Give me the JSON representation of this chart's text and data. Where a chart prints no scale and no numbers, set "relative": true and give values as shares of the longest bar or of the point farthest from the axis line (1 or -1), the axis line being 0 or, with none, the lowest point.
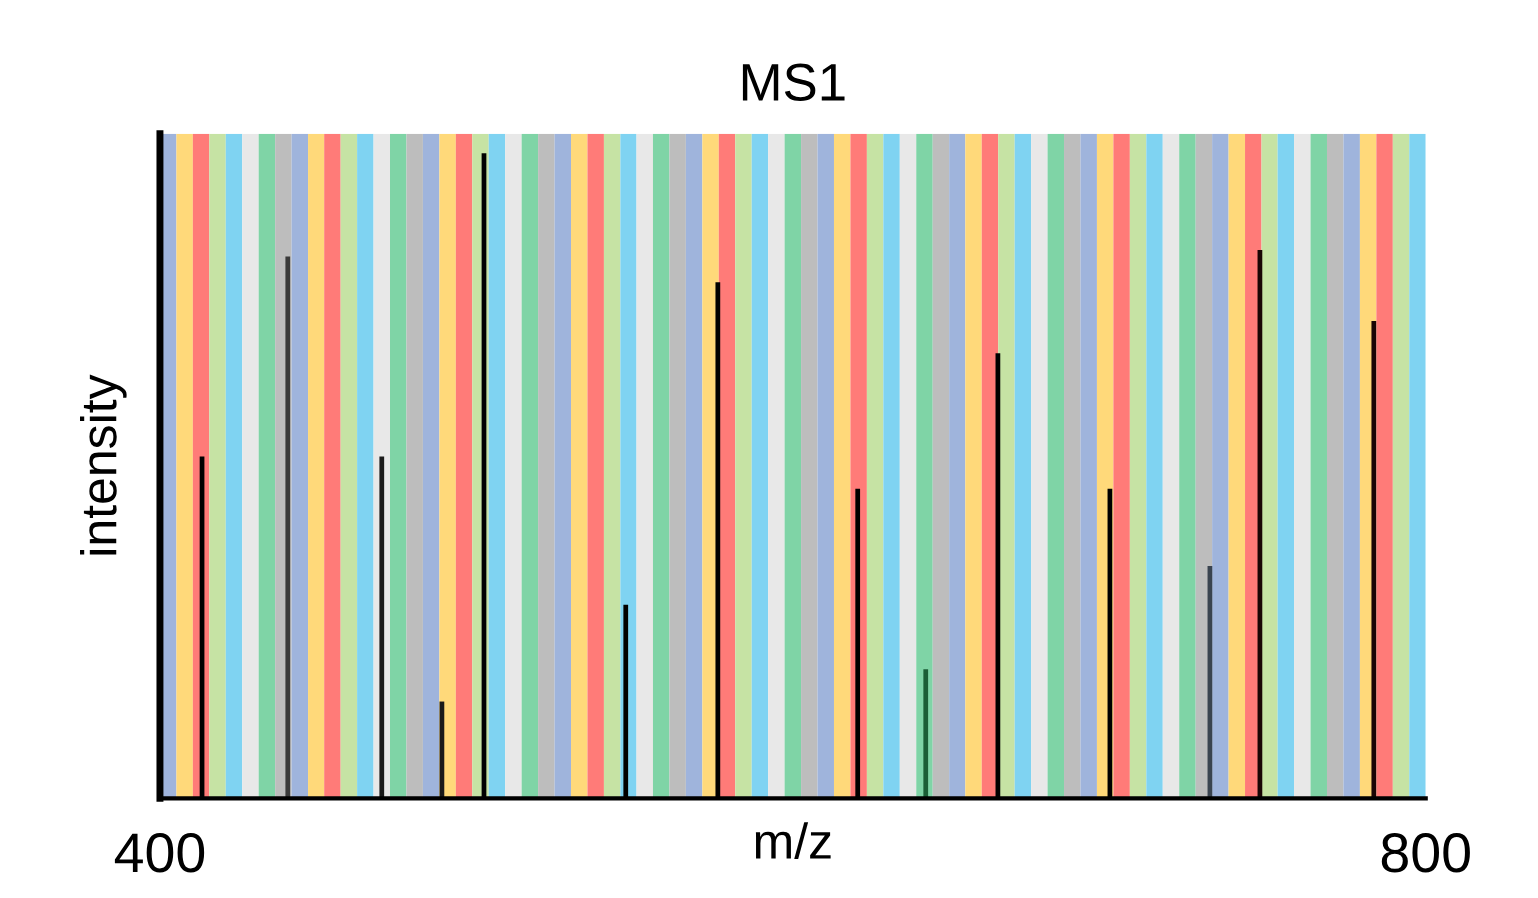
{
  "chart_data": {
    "type": "bar",
    "title": "MS1",
    "xlabel": "m/z",
    "ylabel": "intensity",
    "relative": true,
    "tick_labels": "x",
    "grid": false,
    "xlim": [
      400,
      800
    ],
    "xticks": [
      400,
      800
    ],
    "x": [
      413.3,
      440.4,
      470.1,
      489.1,
      502.4,
      547.2,
      576.3,
      620.5,
      642.0,
      664.8,
      700.2,
      731.8,
      747.6,
      783.6
    ],
    "values": [
      0.53,
      0.84,
      0.53,
      0.15,
      1,
      0.3,
      0.8,
      0.48,
      0.2,
      0.69,
      0.48,
      0.36,
      0.85,
      0.74
    ],
    "colors": [
      "#000000",
      "#3a3a3a",
      "#1a1a1a",
      "#1a1a1a",
      "#000000",
      "#000000",
      "#000000",
      "#000000",
      "#1b5e36",
      "#000000",
      "#000000",
      "#3a4450",
      "#1a0505",
      "#1a0505"
    ],
    "bands": [
      {
        "axis": "x",
        "from": 400,
        "to": 405.2,
        "color": "#9fb4dc"
      },
      {
        "axis": "x",
        "from": 405.2,
        "to": 410.4,
        "color": "#ffd97a"
      },
      {
        "axis": "x",
        "from": 410.4,
        "to": 415.6,
        "color": "#ff7b78"
      },
      {
        "axis": "x",
        "from": 415.6,
        "to": 420.8,
        "color": "#c6e3a4"
      },
      {
        "axis": "x",
        "from": 420.8,
        "to": 426.0,
        "color": "#7fd3f2"
      },
      {
        "axis": "x",
        "from": 426.0,
        "to": 431.2,
        "color": "#e8e8e8"
      },
      {
        "axis": "x",
        "from": 431.2,
        "to": 436.4,
        "color": "#7fd4a6"
      },
      {
        "axis": "x",
        "from": 436.4,
        "to": 441.6,
        "color": "#bdbdbd"
      },
      {
        "axis": "x",
        "from": 441.6,
        "to": 446.8,
        "color": "#9fb4dc"
      },
      {
        "axis": "x",
        "from": 446.8,
        "to": 451.9,
        "color": "#ffd97a"
      },
      {
        "axis": "x",
        "from": 451.9,
        "to": 457.1,
        "color": "#ff7b78"
      },
      {
        "axis": "x",
        "from": 457.1,
        "to": 462.3,
        "color": "#c6e3a4"
      },
      {
        "axis": "x",
        "from": 462.3,
        "to": 467.5,
        "color": "#7fd3f2"
      },
      {
        "axis": "x",
        "from": 467.5,
        "to": 472.7,
        "color": "#e8e8e8"
      },
      {
        "axis": "x",
        "from": 472.7,
        "to": 477.9,
        "color": "#7fd4a6"
      },
      {
        "axis": "x",
        "from": 477.9,
        "to": 483.1,
        "color": "#bdbdbd"
      },
      {
        "axis": "x",
        "from": 483.1,
        "to": 488.3,
        "color": "#9fb4dc"
      },
      {
        "axis": "x",
        "from": 488.3,
        "to": 493.5,
        "color": "#ffd97a"
      },
      {
        "axis": "x",
        "from": 493.5,
        "to": 498.7,
        "color": "#ff7b78"
      },
      {
        "axis": "x",
        "from": 498.7,
        "to": 503.9,
        "color": "#c6e3a4"
      },
      {
        "axis": "x",
        "from": 503.9,
        "to": 509.1,
        "color": "#7fd3f2"
      },
      {
        "axis": "x",
        "from": 509.1,
        "to": 514.3,
        "color": "#e8e8e8"
      },
      {
        "axis": "x",
        "from": 514.3,
        "to": 519.5,
        "color": "#7fd4a6"
      },
      {
        "axis": "x",
        "from": 519.5,
        "to": 524.7,
        "color": "#bdbdbd"
      },
      {
        "axis": "x",
        "from": 524.7,
        "to": 529.9,
        "color": "#9fb4dc"
      },
      {
        "axis": "x",
        "from": 529.9,
        "to": 535.1,
        "color": "#ffd97a"
      },
      {
        "axis": "x",
        "from": 535.1,
        "to": 540.3,
        "color": "#ff7b78"
      },
      {
        "axis": "x",
        "from": 540.3,
        "to": 545.5,
        "color": "#c6e3a4"
      },
      {
        "axis": "x",
        "from": 545.5,
        "to": 550.6,
        "color": "#7fd3f2"
      },
      {
        "axis": "x",
        "from": 550.6,
        "to": 555.8,
        "color": "#e8e8e8"
      },
      {
        "axis": "x",
        "from": 555.8,
        "to": 561.0,
        "color": "#7fd4a6"
      },
      {
        "axis": "x",
        "from": 561.0,
        "to": 566.2,
        "color": "#bdbdbd"
      },
      {
        "axis": "x",
        "from": 566.2,
        "to": 571.4,
        "color": "#9fb4dc"
      },
      {
        "axis": "x",
        "from": 571.4,
        "to": 576.6,
        "color": "#ffd97a"
      },
      {
        "axis": "x",
        "from": 576.6,
        "to": 581.8,
        "color": "#ff7b78"
      },
      {
        "axis": "x",
        "from": 581.8,
        "to": 587.0,
        "color": "#c6e3a4"
      },
      {
        "axis": "x",
        "from": 587.0,
        "to": 592.2,
        "color": "#7fd3f2"
      },
      {
        "axis": "x",
        "from": 592.2,
        "to": 597.4,
        "color": "#e8e8e8"
      },
      {
        "axis": "x",
        "from": 597.4,
        "to": 602.6,
        "color": "#7fd4a6"
      },
      {
        "axis": "x",
        "from": 602.6,
        "to": 607.8,
        "color": "#bdbdbd"
      },
      {
        "axis": "x",
        "from": 607.8,
        "to": 613.0,
        "color": "#9fb4dc"
      },
      {
        "axis": "x",
        "from": 613.0,
        "to": 618.2,
        "color": "#ffd97a"
      },
      {
        "axis": "x",
        "from": 618.2,
        "to": 623.4,
        "color": "#ff7b78"
      },
      {
        "axis": "x",
        "from": 623.4,
        "to": 628.6,
        "color": "#c6e3a4"
      },
      {
        "axis": "x",
        "from": 628.6,
        "to": 633.8,
        "color": "#7fd3f2"
      },
      {
        "axis": "x",
        "from": 633.8,
        "to": 639.0,
        "color": "#e8e8e8"
      },
      {
        "axis": "x",
        "from": 639.0,
        "to": 644.2,
        "color": "#7fd4a6"
      },
      {
        "axis": "x",
        "from": 644.2,
        "to": 649.4,
        "color": "#bdbdbd"
      },
      {
        "axis": "x",
        "from": 649.4,
        "to": 654.5,
        "color": "#9fb4dc"
      },
      {
        "axis": "x",
        "from": 654.5,
        "to": 659.7,
        "color": "#ffd97a"
      },
      {
        "axis": "x",
        "from": 659.7,
        "to": 664.9,
        "color": "#ff7b78"
      },
      {
        "axis": "x",
        "from": 664.9,
        "to": 670.1,
        "color": "#c6e3a4"
      },
      {
        "axis": "x",
        "from": 670.1,
        "to": 675.3,
        "color": "#7fd3f2"
      },
      {
        "axis": "x",
        "from": 675.3,
        "to": 680.5,
        "color": "#e8e8e8"
      },
      {
        "axis": "x",
        "from": 680.5,
        "to": 685.7,
        "color": "#7fd4a6"
      },
      {
        "axis": "x",
        "from": 685.7,
        "to": 690.9,
        "color": "#bdbdbd"
      },
      {
        "axis": "x",
        "from": 690.9,
        "to": 696.1,
        "color": "#9fb4dc"
      },
      {
        "axis": "x",
        "from": 696.1,
        "to": 701.3,
        "color": "#ffd97a"
      },
      {
        "axis": "x",
        "from": 701.3,
        "to": 706.5,
        "color": "#ff7b78"
      },
      {
        "axis": "x",
        "from": 706.5,
        "to": 711.7,
        "color": "#c6e3a4"
      },
      {
        "axis": "x",
        "from": 711.7,
        "to": 716.9,
        "color": "#7fd3f2"
      },
      {
        "axis": "x",
        "from": 716.9,
        "to": 722.1,
        "color": "#e8e8e8"
      },
      {
        "axis": "x",
        "from": 722.1,
        "to": 727.3,
        "color": "#7fd4a6"
      },
      {
        "axis": "x",
        "from": 727.3,
        "to": 732.5,
        "color": "#bdbdbd"
      },
      {
        "axis": "x",
        "from": 732.5,
        "to": 737.7,
        "color": "#9fb4dc"
      },
      {
        "axis": "x",
        "from": 737.7,
        "to": 742.9,
        "color": "#ffd97a"
      },
      {
        "axis": "x",
        "from": 742.9,
        "to": 748.1,
        "color": "#ff7b78"
      },
      {
        "axis": "x",
        "from": 748.1,
        "to": 753.2,
        "color": "#c6e3a4"
      },
      {
        "axis": "x",
        "from": 753.2,
        "to": 758.4,
        "color": "#7fd3f2"
      },
      {
        "axis": "x",
        "from": 758.4,
        "to": 763.6,
        "color": "#e8e8e8"
      },
      {
        "axis": "x",
        "from": 763.6,
        "to": 768.8,
        "color": "#7fd4a6"
      },
      {
        "axis": "x",
        "from": 768.8,
        "to": 774.0,
        "color": "#bdbdbd"
      },
      {
        "axis": "x",
        "from": 774.0,
        "to": 779.2,
        "color": "#9fb4dc"
      },
      {
        "axis": "x",
        "from": 779.2,
        "to": 784.4,
        "color": "#ffd97a"
      },
      {
        "axis": "x",
        "from": 784.4,
        "to": 789.6,
        "color": "#ff7b78"
      },
      {
        "axis": "x",
        "from": 789.6,
        "to": 794.8,
        "color": "#c6e3a4"
      },
      {
        "axis": "x",
        "from": 794.8,
        "to": 800,
        "color": "#7fd3f2"
      }
    ]
  }
}
